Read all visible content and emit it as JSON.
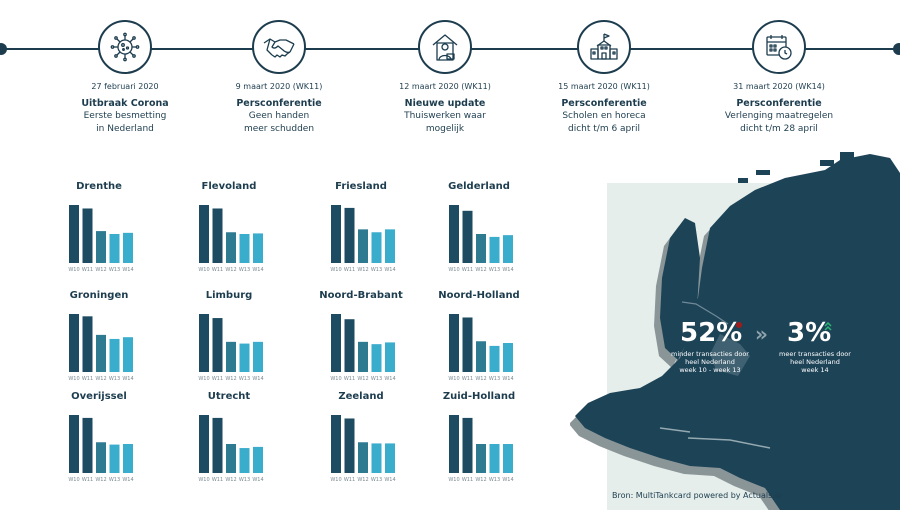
{
  "timeline": [
    {
      "date": "27 februari 2020",
      "title": "Uitbraak Corona",
      "desc1": "Eerste besmetting",
      "desc2": "in Nederland",
      "icon": "virus-icon"
    },
    {
      "date": "9 maart 2020 (WK11)",
      "title": "Persconferentie",
      "desc1": "Geen handen",
      "desc2": "meer schudden",
      "icon": "handshake-icon"
    },
    {
      "date": "12 maart 2020 (WK11)",
      "title": "Nieuwe update",
      "desc1": "Thuiswerken waar",
      "desc2": "mogelijk",
      "icon": "home-office-icon"
    },
    {
      "date": "15 maart 2020 (WK11)",
      "title": "Persconferentie",
      "desc1": "Scholen en horeca",
      "desc2": "dicht t/m 6 april",
      "icon": "school-icon"
    },
    {
      "date": "31 maart 2020 (WK14)",
      "title": "Persconferentie",
      "desc1": "Verlenging maatregelen",
      "desc2": "dicht t/m 28 april",
      "icon": "calendar-clock-icon"
    }
  ],
  "colors": {
    "dark": "#1d4b61",
    "mid": "#2d7a91",
    "light": "#3aaccc",
    "navy": "#1d3d4f",
    "map": "#1d4357",
    "map_shadow": "#8a9598",
    "accent_red": "#a01b1b",
    "accent_green": "#2bb673"
  },
  "chart_data": {
    "type": "bar",
    "categories": [
      "W10",
      "W11",
      "W12",
      "W13",
      "W14"
    ],
    "ylim": [
      0,
      1
    ],
    "provinces": [
      {
        "name": "Drenthe",
        "values": [
          1.0,
          0.94,
          0.55,
          0.5,
          0.52
        ]
      },
      {
        "name": "Flevoland",
        "values": [
          1.0,
          0.94,
          0.53,
          0.5,
          0.51
        ]
      },
      {
        "name": "Friesland",
        "values": [
          1.0,
          0.95,
          0.58,
          0.53,
          0.58
        ]
      },
      {
        "name": "Gelderland",
        "values": [
          1.0,
          0.9,
          0.5,
          0.45,
          0.48
        ]
      },
      {
        "name": "Groningen",
        "values": [
          1.0,
          0.96,
          0.64,
          0.57,
          0.6
        ]
      },
      {
        "name": "Limburg",
        "values": [
          1.0,
          0.93,
          0.52,
          0.49,
          0.52
        ]
      },
      {
        "name": "Noord-Brabant",
        "values": [
          1.0,
          0.91,
          0.52,
          0.48,
          0.51
        ]
      },
      {
        "name": "Noord-Holland",
        "values": [
          1.0,
          0.94,
          0.53,
          0.45,
          0.5
        ]
      },
      {
        "name": "Overijssel",
        "values": [
          1.0,
          0.95,
          0.53,
          0.49,
          0.5
        ]
      },
      {
        "name": "Utrecht",
        "values": [
          1.0,
          0.95,
          0.5,
          0.43,
          0.45
        ]
      },
      {
        "name": "Zeeland",
        "values": [
          1.0,
          0.94,
          0.53,
          0.51,
          0.51
        ]
      },
      {
        "name": "Zuid-Holland",
        "values": [
          1.0,
          0.95,
          0.5,
          0.5,
          0.5
        ]
      }
    ]
  },
  "stats": {
    "left_value": "52%",
    "left_line1": "minder transacties door",
    "left_line2": "heel Nederland",
    "left_line3": "week 10 - week 13",
    "arrows": "»",
    "right_value": "3%",
    "right_line1": "meer transacties door",
    "right_line2": "heel Nederland",
    "right_line3": "week 14"
  },
  "source": "Bron: MultiTankcard powered by Actuals.io"
}
